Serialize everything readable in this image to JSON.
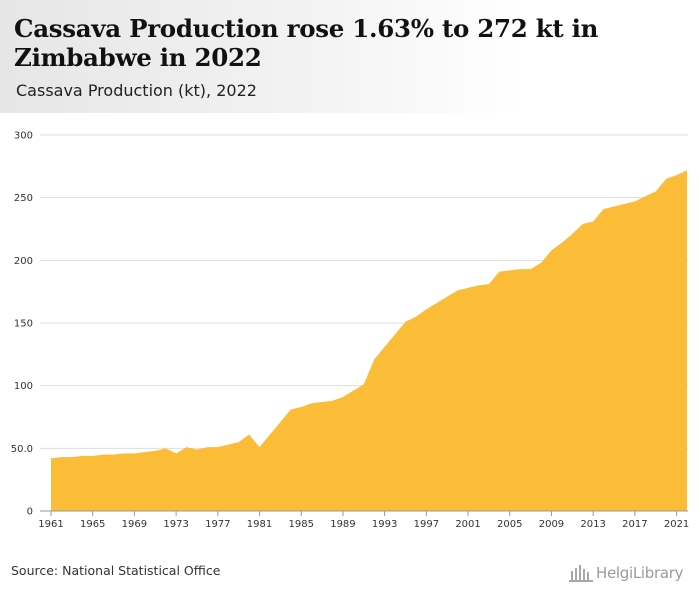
{
  "header": {
    "title": "Cassava Production rose 1.63% to 272 kt in Zimbabwe in 2022",
    "subtitle": "Cassava Production (kt), 2022"
  },
  "footer": {
    "source": "Source: National Statistical Office",
    "logo_text": "HelgiLibrary"
  },
  "colors": {
    "area_fill": "#fbbd38",
    "gridline": "#dddddd",
    "axis": "#999999"
  },
  "chart_data": {
    "type": "area",
    "title": "Cassava Production rose 1.63% to 272 kt in Zimbabwe in 2022",
    "subtitle": "Cassava Production (kt), 2022",
    "xlabel": "",
    "ylabel": "",
    "xlim": [
      1961,
      2022
    ],
    "ylim": [
      0,
      300
    ],
    "yticks": [
      0,
      50,
      100,
      150,
      200,
      250,
      300
    ],
    "ytick_labels": [
      "0",
      "50.0",
      "100",
      "150",
      "200",
      "250",
      "300"
    ],
    "xticks": [
      1961,
      1965,
      1969,
      1973,
      1977,
      1981,
      1985,
      1989,
      1993,
      1997,
      2001,
      2005,
      2009,
      2013,
      2017,
      2021
    ],
    "grid": true,
    "legend": "none",
    "series": [
      {
        "x": [
          1961,
          1962,
          1963,
          1964,
          1965,
          1966,
          1967,
          1968,
          1969,
          1970,
          1971,
          1972,
          1973,
          1974,
          1975,
          1976,
          1977,
          1978,
          1979,
          1980,
          1981,
          1982,
          1983,
          1984,
          1985,
          1986,
          1987,
          1988,
          1989,
          1990,
          1991,
          1992,
          1993,
          1994,
          1995,
          1996,
          1997,
          1998,
          1999,
          2000,
          2001,
          2002,
          2003,
          2004,
          2005,
          2006,
          2007,
          2008,
          2009,
          2010,
          2011,
          2012,
          2013,
          2014,
          2015,
          2016,
          2017,
          2018,
          2019,
          2020,
          2021,
          2022
        ],
        "values": [
          42,
          43,
          43,
          44,
          44,
          45,
          45,
          46,
          46,
          47,
          48,
          50,
          46,
          51,
          49,
          51,
          51,
          53,
          55,
          61,
          51,
          61,
          71,
          81,
          83,
          86,
          87,
          88,
          91,
          96,
          101,
          121,
          131,
          141,
          151,
          155,
          161,
          166,
          171,
          176,
          178,
          180,
          181,
          191,
          192,
          193,
          193,
          198,
          208,
          214,
          221,
          229,
          231,
          241,
          243,
          245,
          247,
          251,
          255,
          265,
          268,
          272
        ]
      }
    ]
  }
}
